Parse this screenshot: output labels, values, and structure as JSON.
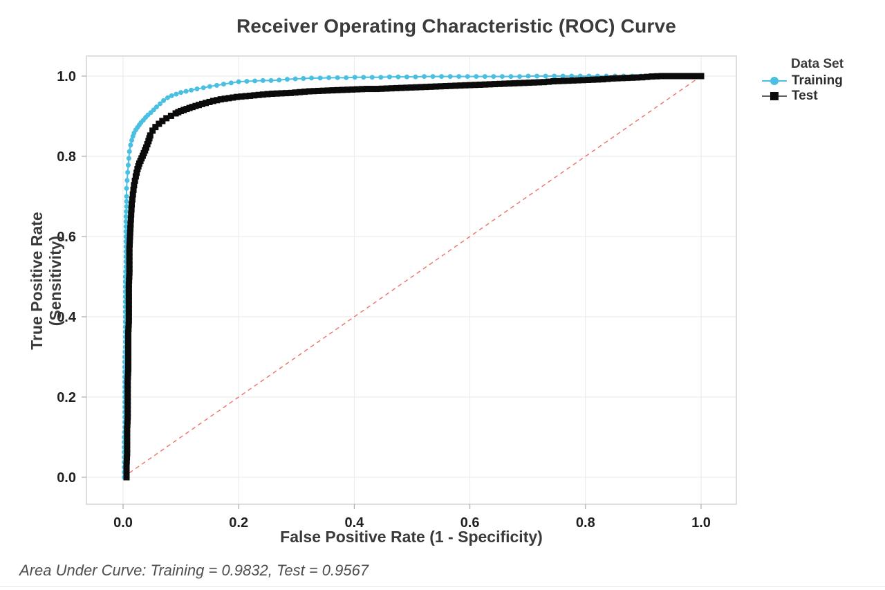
{
  "title": "Receiver Operating Characteristic (ROC) Curve",
  "footnote": "Area Under Curve: Training = 0.9832, Test = 0.9567",
  "legend": {
    "title": "Data Set",
    "items": [
      {
        "label": "Training"
      },
      {
        "label": "Test"
      }
    ]
  },
  "colors": {
    "training": "#49BFE2",
    "test": "#0B0B0B",
    "test_line": "#5F5F5F",
    "diagonal": "#EE7068",
    "grid": "#EAEAEA",
    "frame": "#C9C9C9",
    "tick": "#ABABAB",
    "tick_label": "#1F1F1F"
  },
  "chart_data": {
    "type": "line",
    "title": "Receiver Operating Characteristic (ROC) Curve",
    "xlabel": "False Positive Rate (1 - Specificity)",
    "ylabel": "True Positive Rate (Sensitivity)",
    "x_ticks": [
      "0.0",
      "0.2",
      "0.4",
      "0.6",
      "0.8",
      "1.0"
    ],
    "y_ticks": [
      "0.0",
      "0.2",
      "0.4",
      "0.6",
      "0.8",
      "1.0"
    ],
    "xlim": [
      -0.063,
      1.061
    ],
    "ylim": [
      -0.067,
      1.05
    ],
    "grid": true,
    "legend_position": "right",
    "reference_line": {
      "style": "dashed",
      "from": [
        0,
        0
      ],
      "to": [
        1,
        1
      ]
    },
    "series": [
      {
        "name": "Training",
        "marker": "circle",
        "auc": 0.9832,
        "points": [
          [
            0.002,
            0.0
          ],
          [
            0.002,
            0.025
          ],
          [
            0.002,
            0.05
          ],
          [
            0.002,
            0.075
          ],
          [
            0.002,
            0.1
          ],
          [
            0.003,
            0.125
          ],
          [
            0.003,
            0.15
          ],
          [
            0.003,
            0.175
          ],
          [
            0.003,
            0.2
          ],
          [
            0.003,
            0.225
          ],
          [
            0.003,
            0.25
          ],
          [
            0.003,
            0.275
          ],
          [
            0.003,
            0.3
          ],
          [
            0.004,
            0.325
          ],
          [
            0.004,
            0.35
          ],
          [
            0.004,
            0.375
          ],
          [
            0.004,
            0.4
          ],
          [
            0.004,
            0.425
          ],
          [
            0.004,
            0.45
          ],
          [
            0.004,
            0.475
          ],
          [
            0.004,
            0.5
          ],
          [
            0.005,
            0.525
          ],
          [
            0.005,
            0.55
          ],
          [
            0.005,
            0.575
          ],
          [
            0.005,
            0.6
          ],
          [
            0.005,
            0.625
          ],
          [
            0.005,
            0.65
          ],
          [
            0.006,
            0.675
          ],
          [
            0.006,
            0.7
          ],
          [
            0.006,
            0.72
          ],
          [
            0.007,
            0.74
          ],
          [
            0.008,
            0.76
          ],
          [
            0.009,
            0.778
          ],
          [
            0.01,
            0.795
          ],
          [
            0.011,
            0.812
          ],
          [
            0.013,
            0.828
          ],
          [
            0.015,
            0.84
          ],
          [
            0.017,
            0.85
          ],
          [
            0.019,
            0.858
          ],
          [
            0.022,
            0.866
          ],
          [
            0.025,
            0.872
          ],
          [
            0.028,
            0.878
          ],
          [
            0.031,
            0.884
          ],
          [
            0.035,
            0.89
          ],
          [
            0.039,
            0.897
          ],
          [
            0.043,
            0.903
          ],
          [
            0.048,
            0.909
          ],
          [
            0.053,
            0.916
          ],
          [
            0.058,
            0.923
          ],
          [
            0.064,
            0.931
          ],
          [
            0.07,
            0.939
          ],
          [
            0.077,
            0.946
          ],
          [
            0.084,
            0.951
          ],
          [
            0.092,
            0.955
          ],
          [
            0.1,
            0.959
          ],
          [
            0.109,
            0.962
          ],
          [
            0.118,
            0.965
          ],
          [
            0.128,
            0.968
          ],
          [
            0.139,
            0.971
          ],
          [
            0.15,
            0.974
          ],
          [
            0.162,
            0.977
          ],
          [
            0.174,
            0.98
          ],
          [
            0.187,
            0.983
          ],
          [
            0.2,
            0.986
          ],
          [
            0.214,
            0.987
          ],
          [
            0.228,
            0.988
          ],
          [
            0.242,
            0.989
          ],
          [
            0.256,
            0.989
          ],
          [
            0.27,
            0.99
          ],
          [
            0.284,
            0.992
          ],
          [
            0.298,
            0.993
          ],
          [
            0.312,
            0.994
          ],
          [
            0.326,
            0.995
          ],
          [
            0.341,
            0.995
          ],
          [
            0.356,
            0.996
          ],
          [
            0.371,
            0.996
          ],
          [
            0.386,
            0.996
          ],
          [
            0.401,
            0.997
          ],
          [
            0.416,
            0.997
          ],
          [
            0.431,
            0.997
          ],
          [
            0.446,
            0.997
          ],
          [
            0.461,
            0.998
          ],
          [
            0.476,
            0.998
          ],
          [
            0.491,
            0.998
          ],
          [
            0.506,
            0.998
          ],
          [
            0.521,
            0.999
          ],
          [
            0.536,
            0.999
          ],
          [
            0.551,
            0.999
          ],
          [
            0.566,
            0.999
          ],
          [
            0.581,
            0.999
          ],
          [
            0.596,
            0.999
          ],
          [
            0.611,
            0.999
          ],
          [
            0.626,
            0.999
          ],
          [
            0.641,
            0.999
          ],
          [
            0.656,
            0.999
          ],
          [
            0.671,
            0.999
          ],
          [
            0.686,
            0.999
          ],
          [
            0.701,
            1.0
          ],
          [
            0.716,
            1.0
          ],
          [
            0.731,
            1.0
          ],
          [
            0.746,
            1.0
          ],
          [
            0.761,
            1.0
          ],
          [
            0.776,
            1.0
          ],
          [
            0.791,
            1.0
          ],
          [
            0.806,
            1.0
          ],
          [
            0.821,
            1.0
          ],
          [
            0.836,
            1.0
          ],
          [
            0.851,
            1.0
          ],
          [
            0.866,
            1.0
          ],
          [
            0.881,
            1.0
          ],
          [
            0.896,
            1.0
          ],
          [
            1.0,
            1.0
          ]
        ]
      },
      {
        "name": "Test",
        "marker": "square",
        "auc": 0.9567,
        "points": [
          [
            0.006,
            0.0
          ],
          [
            0.006,
            0.03
          ],
          [
            0.007,
            0.06
          ],
          [
            0.007,
            0.09
          ],
          [
            0.007,
            0.12
          ],
          [
            0.008,
            0.15
          ],
          [
            0.008,
            0.18
          ],
          [
            0.008,
            0.21
          ],
          [
            0.008,
            0.24
          ],
          [
            0.009,
            0.27
          ],
          [
            0.009,
            0.3
          ],
          [
            0.009,
            0.33
          ],
          [
            0.009,
            0.36
          ],
          [
            0.01,
            0.39
          ],
          [
            0.01,
            0.42
          ],
          [
            0.01,
            0.45
          ],
          [
            0.01,
            0.48
          ],
          [
            0.011,
            0.51
          ],
          [
            0.011,
            0.54
          ],
          [
            0.011,
            0.57
          ],
          [
            0.012,
            0.6
          ],
          [
            0.013,
            0.63
          ],
          [
            0.014,
            0.655
          ],
          [
            0.015,
            0.68
          ],
          [
            0.017,
            0.705
          ],
          [
            0.019,
            0.728
          ],
          [
            0.022,
            0.75
          ],
          [
            0.025,
            0.768
          ],
          [
            0.028,
            0.782
          ],
          [
            0.032,
            0.795
          ],
          [
            0.036,
            0.808
          ],
          [
            0.04,
            0.822
          ],
          [
            0.044,
            0.838
          ],
          [
            0.047,
            0.852
          ],
          [
            0.051,
            0.864
          ],
          [
            0.056,
            0.873
          ],
          [
            0.062,
            0.881
          ],
          [
            0.068,
            0.888
          ],
          [
            0.075,
            0.895
          ],
          [
            0.083,
            0.901
          ],
          [
            0.091,
            0.907
          ],
          [
            0.1,
            0.913
          ],
          [
            0.11,
            0.918
          ],
          [
            0.12,
            0.923
          ],
          [
            0.131,
            0.928
          ],
          [
            0.143,
            0.933
          ],
          [
            0.156,
            0.938
          ],
          [
            0.169,
            0.942
          ],
          [
            0.183,
            0.945
          ],
          [
            0.197,
            0.948
          ],
          [
            0.212,
            0.95
          ],
          [
            0.227,
            0.952
          ],
          [
            0.242,
            0.954
          ],
          [
            0.258,
            0.956
          ],
          [
            0.274,
            0.957
          ],
          [
            0.29,
            0.958
          ],
          [
            0.306,
            0.96
          ],
          [
            0.322,
            0.962
          ],
          [
            0.338,
            0.963
          ],
          [
            0.354,
            0.964
          ],
          [
            0.371,
            0.965
          ],
          [
            0.388,
            0.966
          ],
          [
            0.405,
            0.967
          ],
          [
            0.422,
            0.968
          ],
          [
            0.439,
            0.968
          ],
          [
            0.456,
            0.969
          ],
          [
            0.473,
            0.97
          ],
          [
            0.49,
            0.971
          ],
          [
            0.507,
            0.972
          ],
          [
            0.524,
            0.973
          ],
          [
            0.541,
            0.974
          ],
          [
            0.558,
            0.975
          ],
          [
            0.575,
            0.976
          ],
          [
            0.592,
            0.977
          ],
          [
            0.609,
            0.978
          ],
          [
            0.626,
            0.979
          ],
          [
            0.643,
            0.98
          ],
          [
            0.66,
            0.981
          ],
          [
            0.677,
            0.982
          ],
          [
            0.694,
            0.983
          ],
          [
            0.711,
            0.984
          ],
          [
            0.728,
            0.985
          ],
          [
            0.745,
            0.987
          ],
          [
            0.762,
            0.988
          ],
          [
            0.779,
            0.989
          ],
          [
            0.796,
            0.99
          ],
          [
            0.813,
            0.991
          ],
          [
            0.83,
            0.992
          ],
          [
            0.847,
            0.994
          ],
          [
            0.864,
            0.995
          ],
          [
            0.881,
            0.996
          ],
          [
            0.898,
            0.997
          ],
          [
            0.915,
            0.999
          ],
          [
            0.932,
            1.0
          ],
          [
            0.949,
            1.0
          ],
          [
            0.966,
            1.0
          ],
          [
            0.983,
            1.0
          ],
          [
            1.0,
            1.0
          ]
        ]
      }
    ]
  }
}
